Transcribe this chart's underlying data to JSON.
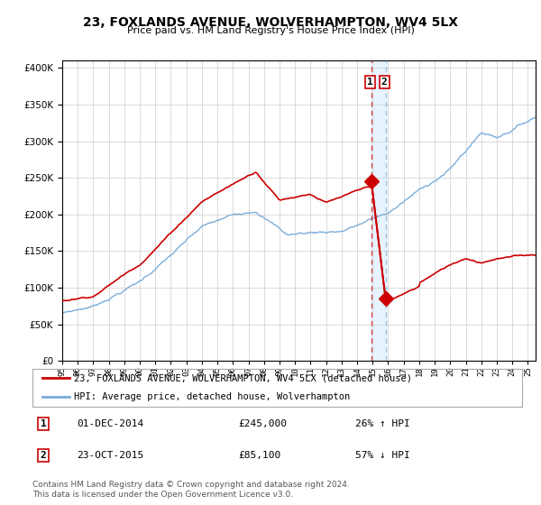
{
  "title": "23, FOXLANDS AVENUE, WOLVERHAMPTON, WV4 5LX",
  "subtitle": "Price paid vs. HM Land Registry's House Price Index (HPI)",
  "legend_line1": "23, FOXLANDS AVENUE, WOLVERHAMPTON, WV4 5LX (detached house)",
  "legend_line2": "HPI: Average price, detached house, Wolverhampton",
  "transaction1_date": "01-DEC-2014",
  "transaction1_price": "£245,000",
  "transaction1_hpi": "26% ↑ HPI",
  "transaction2_date": "23-OCT-2015",
  "transaction2_price": "£85,100",
  "transaction2_hpi": "57% ↓ HPI",
  "footer": "Contains HM Land Registry data © Crown copyright and database right 2024.\nThis data is licensed under the Open Government Licence v3.0.",
  "line1_color": "#cc0000",
  "line2_color": "#7aaddb",
  "vline1_year": 2014.92,
  "vline2_year": 2015.83,
  "shading_color": "#ddeeff",
  "marker1_year": 2014.92,
  "marker1_price": 245000,
  "marker2_year": 2015.83,
  "marker2_price": 85100,
  "ylim": [
    0,
    410000
  ],
  "yticks": [
    0,
    50000,
    100000,
    150000,
    200000,
    250000,
    300000,
    350000,
    400000
  ],
  "xlim_start": 1995,
  "xlim_end": 2025.5
}
